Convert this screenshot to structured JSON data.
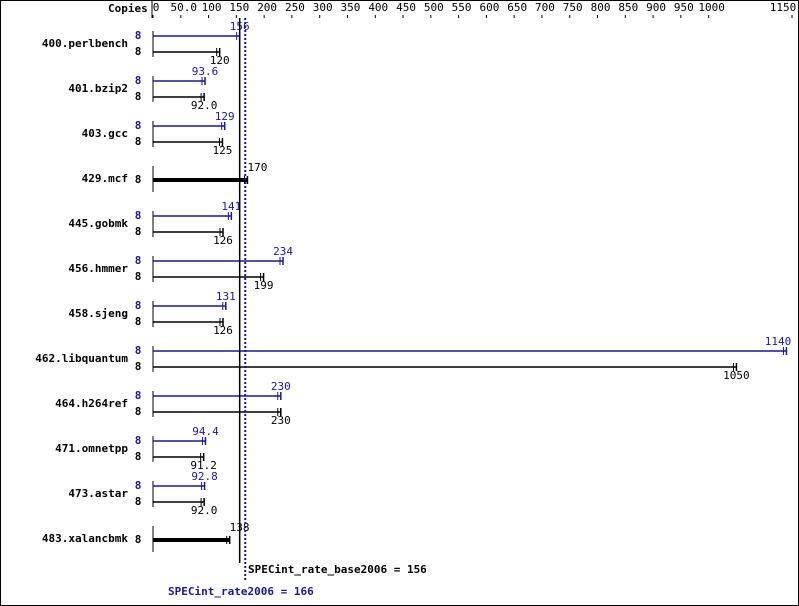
{
  "chart_data": {
    "type": "bar",
    "orientation": "horizontal",
    "copies_header": "Copies",
    "categories": [
      "400.perlbench",
      "401.bzip2",
      "403.gcc",
      "429.mcf",
      "445.gobmk",
      "456.hmmer",
      "458.sjeng",
      "462.libquantum",
      "464.h264ref",
      "471.omnetpp",
      "473.astar",
      "483.xalancbmk"
    ],
    "series": [
      {
        "color": "#191991",
        "copies": [
          8,
          8,
          8,
          null,
          8,
          8,
          8,
          8,
          8,
          8,
          8,
          null
        ],
        "values": [
          156,
          93.6,
          129,
          null,
          141,
          234,
          131,
          1140,
          230,
          94.4,
          92.8,
          null
        ],
        "value_labels": [
          "156",
          "93.6",
          "129",
          null,
          "141",
          "234",
          "131",
          "1140",
          "230",
          "94.4",
          "92.8",
          null
        ]
      },
      {
        "color": "#000000",
        "copies": [
          8,
          8,
          8,
          8,
          8,
          8,
          8,
          8,
          8,
          8,
          8,
          8
        ],
        "values": [
          120,
          92,
          125,
          170,
          126,
          199,
          126,
          1050,
          230,
          91.2,
          92,
          138
        ],
        "value_labels": [
          "120",
          "92.0",
          "125",
          "170",
          "126",
          "199",
          "126",
          "1050",
          "230",
          "91.2",
          "92.0",
          "138"
        ]
      }
    ],
    "xlim": [
      0,
      1150
    ],
    "xticks": [
      0,
      {
        "value": 50,
        "label": "50.0"
      },
      100,
      150,
      200,
      250,
      300,
      350,
      400,
      450,
      500,
      550,
      600,
      650,
      700,
      750,
      800,
      850,
      900,
      950,
      1000,
      1150
    ],
    "reference_lines": [
      {
        "label": "SPECint_rate_base2006 = 156",
        "value": 156,
        "color": "#000000",
        "style": "solid"
      },
      {
        "label": "SPECint_rate2006 = 166",
        "value": 166,
        "color": "#191991",
        "style": "dotted"
      }
    ]
  }
}
